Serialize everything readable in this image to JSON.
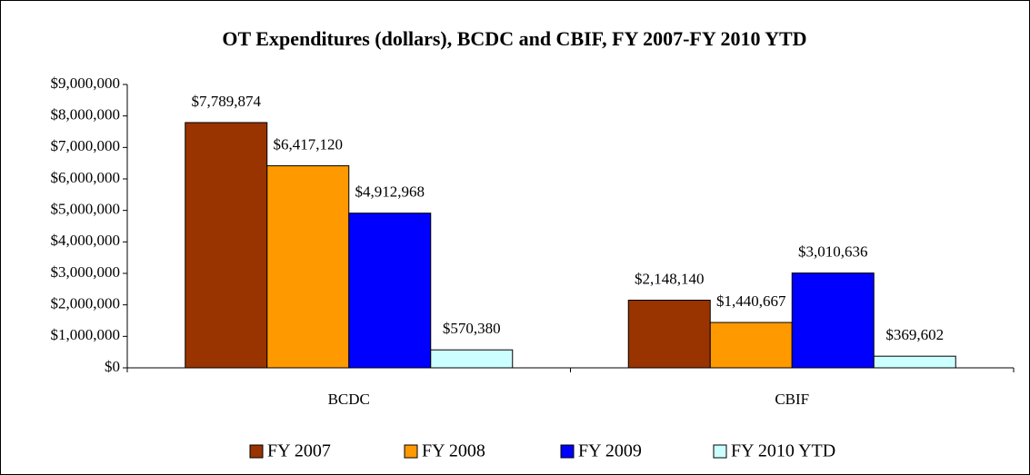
{
  "chart_data": {
    "type": "bar",
    "title": "OT Expenditures (dollars), BCDC and CBIF, FY 2007-FY 2010 YTD",
    "categories": [
      "BCDC",
      "CBIF"
    ],
    "series": [
      {
        "name": "FY 2007",
        "color": "#993300",
        "values": [
          7789874,
          2148140
        ],
        "value_labels": [
          "$7,789,874",
          "$2,148,140"
        ]
      },
      {
        "name": "FY 2008",
        "color": "#ff9900",
        "values": [
          6417120,
          1440667
        ],
        "value_labels": [
          "$6,417,120",
          "$1,440,667"
        ]
      },
      {
        "name": "FY 2009",
        "color": "#0000ff",
        "values": [
          4912968,
          3010636
        ],
        "value_labels": [
          "$4,912,968",
          "$3,010,636"
        ]
      },
      {
        "name": "FY 2010 YTD",
        "color": "#ccffff",
        "values": [
          570380,
          369602
        ],
        "value_labels": [
          "$570,380",
          "$369,602"
        ]
      }
    ],
    "ylim": [
      0,
      9000000
    ],
    "yticks": [
      {
        "value": 0,
        "label": "$0"
      },
      {
        "value": 1000000,
        "label": "$1,000,000"
      },
      {
        "value": 2000000,
        "label": "$2,000,000"
      },
      {
        "value": 3000000,
        "label": "$3,000,000"
      },
      {
        "value": 4000000,
        "label": "$4,000,000"
      },
      {
        "value": 5000000,
        "label": "$5,000,000"
      },
      {
        "value": 6000000,
        "label": "$6,000,000"
      },
      {
        "value": 7000000,
        "label": "$7,000,000"
      },
      {
        "value": 8000000,
        "label": "$8,000,000"
      },
      {
        "value": 9000000,
        "label": "$9,000,000"
      }
    ],
    "grid": false,
    "legend": "bottom"
  }
}
